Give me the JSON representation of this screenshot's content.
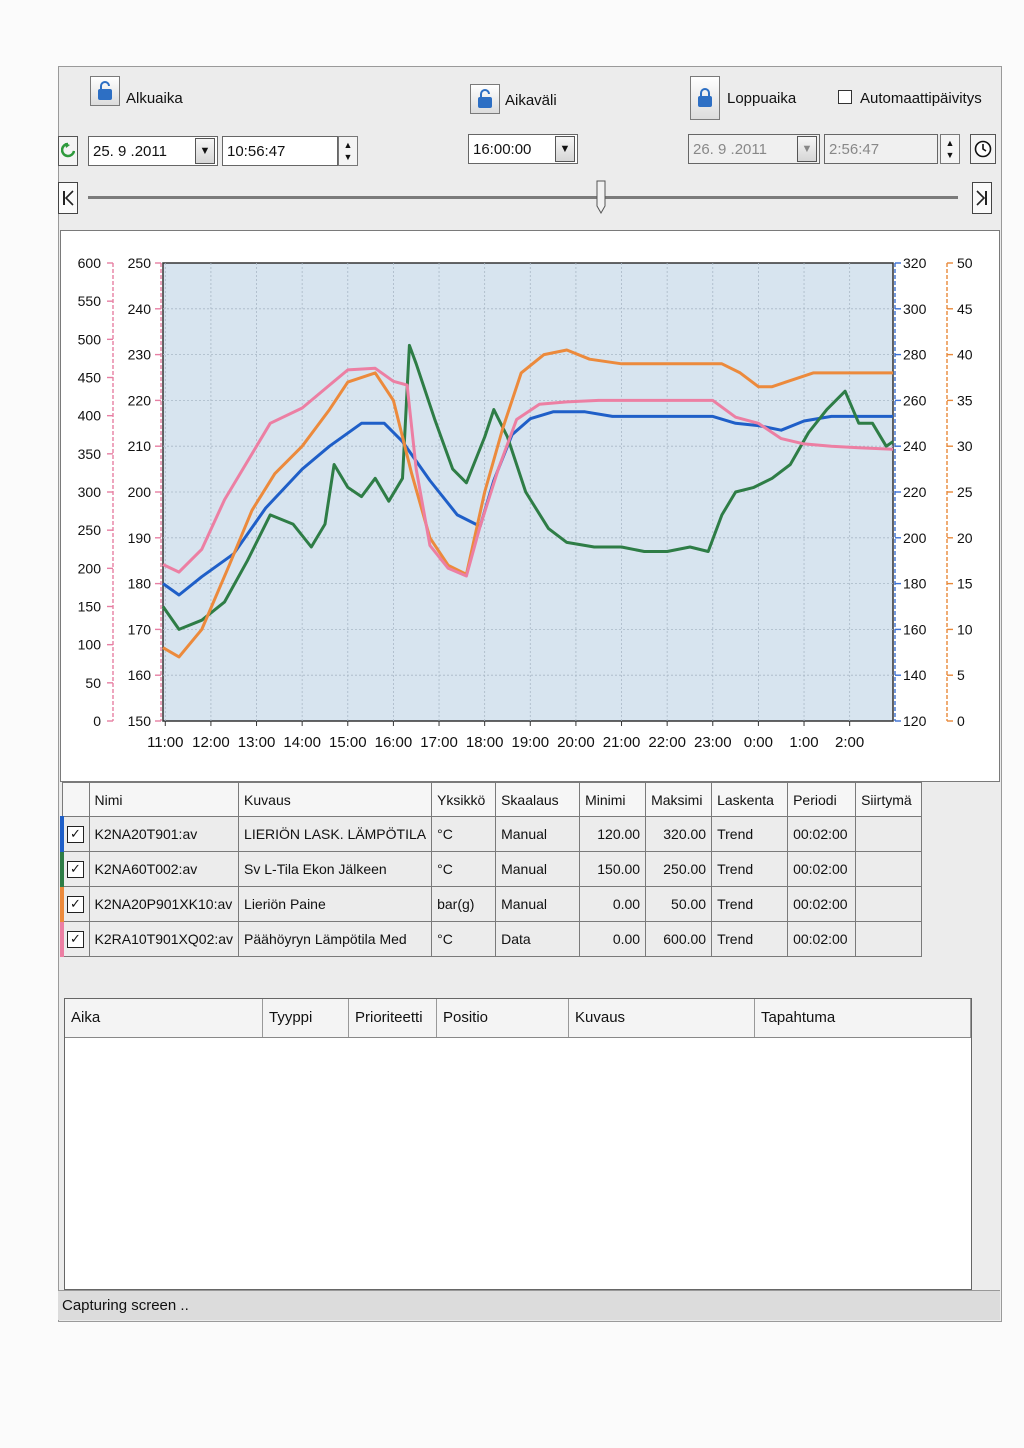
{
  "toolbar": {
    "start_label": "Alkuaika",
    "start_date": "25. 9 .2011",
    "start_time": "10:56:47",
    "interval_label": "Aikaväli",
    "interval_value": "16:00:00",
    "end_label": "Loppuaika",
    "end_date": "26. 9 .2011",
    "end_time": "2:56:47",
    "auto_update_label": "Automaattipäivitys",
    "auto_update_checked": false,
    "slider_position": 0.59
  },
  "chart_data": {
    "type": "line",
    "plot_background": "#d7e4ef",
    "grid": true,
    "x_ticks": [
      "11:00",
      "12:00",
      "13:00",
      "14:00",
      "15:00",
      "16:00",
      "17:00",
      "18:00",
      "19:00",
      "20:00",
      "21:00",
      "22:00",
      "23:00",
      "0:00",
      "1:00",
      "2:00"
    ],
    "x_range_hours": [
      10.95,
      26.95
    ],
    "axes": {
      "pink": {
        "ticks": [
          "600",
          "550",
          "500",
          "450",
          "400",
          "350",
          "300",
          "250",
          "200",
          "150",
          "100",
          "50",
          "0"
        ],
        "range": [
          0,
          600
        ],
        "color": "#e77fa3"
      },
      "green": {
        "ticks": [
          "250",
          "240",
          "230",
          "220",
          "210",
          "200",
          "190",
          "180",
          "170",
          "160",
          "150"
        ],
        "range": [
          150,
          250
        ],
        "color": "#e77fa3"
      },
      "blue": {
        "ticks": [
          "320",
          "300",
          "280",
          "260",
          "240",
          "220",
          "200",
          "180",
          "160",
          "140",
          "120"
        ],
        "range": [
          120,
          320
        ],
        "color": "#3b6fd1"
      },
      "orange": {
        "ticks": [
          "50",
          "45",
          "40",
          "35",
          "30",
          "25",
          "20",
          "15",
          "10",
          "5",
          "0"
        ],
        "range": [
          0,
          50
        ],
        "color": "#e8893a"
      }
    },
    "series": [
      {
        "name": "K2NA20T901:av",
        "axis": "blue",
        "color": "#1f5fc8",
        "points": [
          [
            10.95,
            180
          ],
          [
            11.3,
            175
          ],
          [
            11.8,
            183
          ],
          [
            12.5,
            193
          ],
          [
            13.2,
            213
          ],
          [
            14.0,
            230
          ],
          [
            14.6,
            240
          ],
          [
            15.3,
            250
          ],
          [
            15.8,
            250
          ],
          [
            16.2,
            242
          ],
          [
            16.8,
            225
          ],
          [
            17.4,
            210
          ],
          [
            17.9,
            205
          ],
          [
            18.2,
            225
          ],
          [
            18.6,
            245
          ],
          [
            19.0,
            252
          ],
          [
            19.5,
            255
          ],
          [
            20.2,
            255
          ],
          [
            20.8,
            253
          ],
          [
            21.5,
            253
          ],
          [
            22.5,
            253
          ],
          [
            23.0,
            253
          ],
          [
            23.5,
            250
          ],
          [
            24.0,
            249
          ],
          [
            24.5,
            247
          ],
          [
            25.0,
            251
          ],
          [
            25.6,
            253
          ],
          [
            26.2,
            253
          ],
          [
            26.95,
            253
          ]
        ]
      },
      {
        "name": "K2NA60T002:av",
        "axis": "green",
        "color": "#2e7d46",
        "points": [
          [
            10.95,
            175
          ],
          [
            11.3,
            170
          ],
          [
            11.8,
            172
          ],
          [
            12.3,
            176
          ],
          [
            12.8,
            185
          ],
          [
            13.3,
            195
          ],
          [
            13.8,
            193
          ],
          [
            14.2,
            188
          ],
          [
            14.5,
            193
          ],
          [
            14.7,
            206
          ],
          [
            15.0,
            201
          ],
          [
            15.3,
            199
          ],
          [
            15.6,
            203
          ],
          [
            15.9,
            198
          ],
          [
            16.2,
            203
          ],
          [
            16.35,
            232
          ],
          [
            16.5,
            228
          ],
          [
            16.9,
            216
          ],
          [
            17.3,
            205
          ],
          [
            17.6,
            202
          ],
          [
            18.0,
            212
          ],
          [
            18.2,
            218
          ],
          [
            18.5,
            212
          ],
          [
            18.9,
            200
          ],
          [
            19.4,
            192
          ],
          [
            19.8,
            189
          ],
          [
            20.4,
            188
          ],
          [
            21.0,
            188
          ],
          [
            21.5,
            187
          ],
          [
            22.0,
            187
          ],
          [
            22.5,
            188
          ],
          [
            22.9,
            187
          ],
          [
            23.2,
            195
          ],
          [
            23.5,
            200
          ],
          [
            23.9,
            201
          ],
          [
            24.3,
            203
          ],
          [
            24.7,
            206
          ],
          [
            25.1,
            213
          ],
          [
            25.5,
            218
          ],
          [
            25.9,
            222
          ],
          [
            26.2,
            215
          ],
          [
            26.5,
            215
          ],
          [
            26.8,
            210
          ],
          [
            26.95,
            211
          ]
        ]
      },
      {
        "name": "K2NA20P901XK10:av",
        "axis": "orange",
        "color": "#ec8a3c",
        "points": [
          [
            10.95,
            8
          ],
          [
            11.3,
            7
          ],
          [
            11.8,
            10
          ],
          [
            12.4,
            17
          ],
          [
            12.9,
            23
          ],
          [
            13.4,
            27
          ],
          [
            14.0,
            30
          ],
          [
            14.6,
            34
          ],
          [
            15.0,
            37
          ],
          [
            15.6,
            38
          ],
          [
            16.0,
            35
          ],
          [
            16.4,
            27
          ],
          [
            16.8,
            20
          ],
          [
            17.2,
            17
          ],
          [
            17.6,
            16
          ],
          [
            18.0,
            25
          ],
          [
            18.4,
            32
          ],
          [
            18.8,
            38
          ],
          [
            19.3,
            40
          ],
          [
            19.8,
            40.5
          ],
          [
            20.3,
            39.5
          ],
          [
            21.0,
            39
          ],
          [
            22.0,
            39
          ],
          [
            22.7,
            39
          ],
          [
            23.2,
            39
          ],
          [
            23.6,
            38
          ],
          [
            24.0,
            36.5
          ],
          [
            24.3,
            36.5
          ],
          [
            24.6,
            37
          ],
          [
            25.2,
            38
          ],
          [
            25.8,
            38
          ],
          [
            26.4,
            38
          ],
          [
            26.95,
            38
          ]
        ]
      },
      {
        "name": "K2RA10T901XQ02:av",
        "axis": "pink",
        "color": "#ec7fa3",
        "points": [
          [
            10.95,
            205
          ],
          [
            11.3,
            195
          ],
          [
            11.8,
            225
          ],
          [
            12.3,
            290
          ],
          [
            12.8,
            340
          ],
          [
            13.3,
            390
          ],
          [
            14.0,
            410
          ],
          [
            14.6,
            440
          ],
          [
            15.0,
            460
          ],
          [
            15.6,
            462
          ],
          [
            16.0,
            445
          ],
          [
            16.3,
            440
          ],
          [
            16.5,
            330
          ],
          [
            16.8,
            230
          ],
          [
            17.2,
            200
          ],
          [
            17.6,
            190
          ],
          [
            17.9,
            255
          ],
          [
            18.3,
            330
          ],
          [
            18.7,
            395
          ],
          [
            19.2,
            415
          ],
          [
            19.8,
            418
          ],
          [
            20.5,
            420
          ],
          [
            21.5,
            420
          ],
          [
            22.5,
            420
          ],
          [
            23.0,
            420
          ],
          [
            23.5,
            398
          ],
          [
            24.0,
            390
          ],
          [
            24.5,
            370
          ],
          [
            25.0,
            363
          ],
          [
            25.6,
            360
          ],
          [
            26.2,
            358
          ],
          [
            26.95,
            356
          ]
        ]
      }
    ]
  },
  "table": {
    "columns": [
      "Nimi",
      "Kuvaus",
      "Yksikkö",
      "Skaalaus",
      "Minimi",
      "Maksimi",
      "Laskenta",
      "Periodi",
      "Siirtymä"
    ],
    "rows": [
      {
        "color": "#1f5fc8",
        "check": "✓",
        "name": "K2NA20T901:av",
        "desc": "LIERIÖN LASK. LÄMPÖTILA",
        "unit": "°C",
        "scale": "Manual",
        "min": "120.00",
        "max": "320.00",
        "calc": "Trend",
        "period": "00:02:00",
        "shift": ""
      },
      {
        "color": "#2e7d46",
        "check": "✓",
        "name": "K2NA60T002:av",
        "desc": "Sv L-Tila Ekon Jälkeen",
        "unit": "°C",
        "scale": "Manual",
        "min": "150.00",
        "max": "250.00",
        "calc": "Trend",
        "period": "00:02:00",
        "shift": ""
      },
      {
        "color": "#ec8a3c",
        "check": "✓",
        "name": "K2NA20P901XK10:av",
        "desc": "Lieriön Paine",
        "unit": "bar(g)",
        "scale": "Manual",
        "min": "0.00",
        "max": "50.00",
        "calc": "Trend",
        "period": "00:02:00",
        "shift": ""
      },
      {
        "color": "#ec7fa3",
        "check": "✓",
        "name": "K2RA10T901XQ02:av",
        "desc": "Päähöyryn Lämpötila Med",
        "unit": "°C",
        "scale": "Data",
        "min": "0.00",
        "max": "600.00",
        "calc": "Trend",
        "period": "00:02:00",
        "shift": ""
      }
    ]
  },
  "events": {
    "columns": [
      "Aika",
      "Tyyppi",
      "Prioriteetti",
      "Positio",
      "Kuvaus",
      "Tapahtuma"
    ]
  },
  "status_text": "Capturing screen .."
}
